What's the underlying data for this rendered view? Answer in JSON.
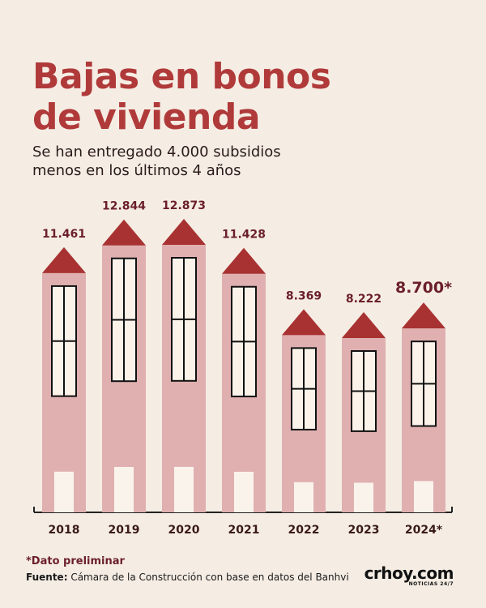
{
  "header": {
    "title_line1": "Bajas en bonos",
    "title_line2": "de vivienda",
    "subtitle_line1": "Se han entregado 4.000 subsidios",
    "subtitle_line2": "menos en los últimos 4 años"
  },
  "footer": {
    "note": "*Dato preliminar",
    "source_label": "Fuente:",
    "source_text": "Cámara de la Construcción con base en datos del Banhvi",
    "logo_main": "crhoy.com",
    "logo_tagline": "NOTICIAS 24/7"
  },
  "colors": {
    "background": "#f5ede4",
    "title": "#b03a3a",
    "building": "#e0b0b0",
    "roof": "#a83232",
    "value_label": "#6b1f2a",
    "window_fill": "#fbf3ea",
    "window_stroke": "#111111",
    "door": "#faf3ec"
  },
  "chart_data": {
    "type": "bar",
    "categories": [
      "2018",
      "2019",
      "2020",
      "2021",
      "2022",
      "2023",
      "2024*"
    ],
    "values": [
      11461,
      12844,
      12873,
      11428,
      8369,
      8222,
      8700
    ],
    "value_labels": [
      "11.461",
      "12.844",
      "12.873",
      "11.428",
      "8.369",
      "8.222",
      "8.700*"
    ],
    "highlight_last": true,
    "title": "",
    "xlabel": "",
    "ylabel": "",
    "ylim": [
      0,
      12873
    ]
  }
}
